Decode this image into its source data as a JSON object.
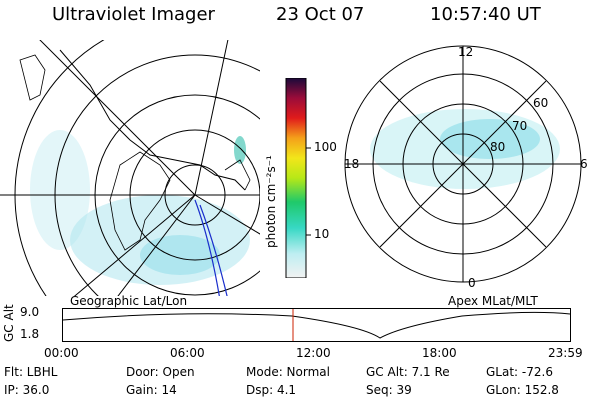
{
  "header": {
    "instrument": "Ultraviolet Imager",
    "date": "23 Oct 07",
    "time": "10:57:40 UT"
  },
  "map_left": {
    "caption": "Geographic Lat/Lon"
  },
  "map_right": {
    "caption": "Apex MLat/MLT",
    "mlt_labels": [
      "12",
      "18",
      "6",
      "0"
    ],
    "mlat_labels": [
      "60",
      "70",
      "80"
    ]
  },
  "colorbar": {
    "unit": "photon cm⁻²s⁻¹",
    "ticks": [
      "100",
      "10"
    ]
  },
  "orbit": {
    "ylabel": "GC Alt",
    "y_ticks": [
      "9.0",
      "1.8"
    ],
    "x_ticks": [
      "00:00",
      "06:00",
      "12:00",
      "18:00",
      "23:59"
    ],
    "current_time_marker": "10:57:40"
  },
  "info": {
    "filter": "Flt: LBHL",
    "door": "Door: Open",
    "mode": "Mode: Normal",
    "gc_alt": "GC Alt: 7.1 Re",
    "glat": "GLat: -72.6",
    "ip": "IP: 36.0",
    "gain": "Gain: 14",
    "dsp": "Dsp:     4.1",
    "seq": "Seq: 39",
    "glon": "GLon: 152.8"
  },
  "colors": {
    "emission": "#aee6ee",
    "emission_bright": "#7ad8e6",
    "orbit_marker": "#cc2200",
    "track": "#1a2ecc"
  }
}
